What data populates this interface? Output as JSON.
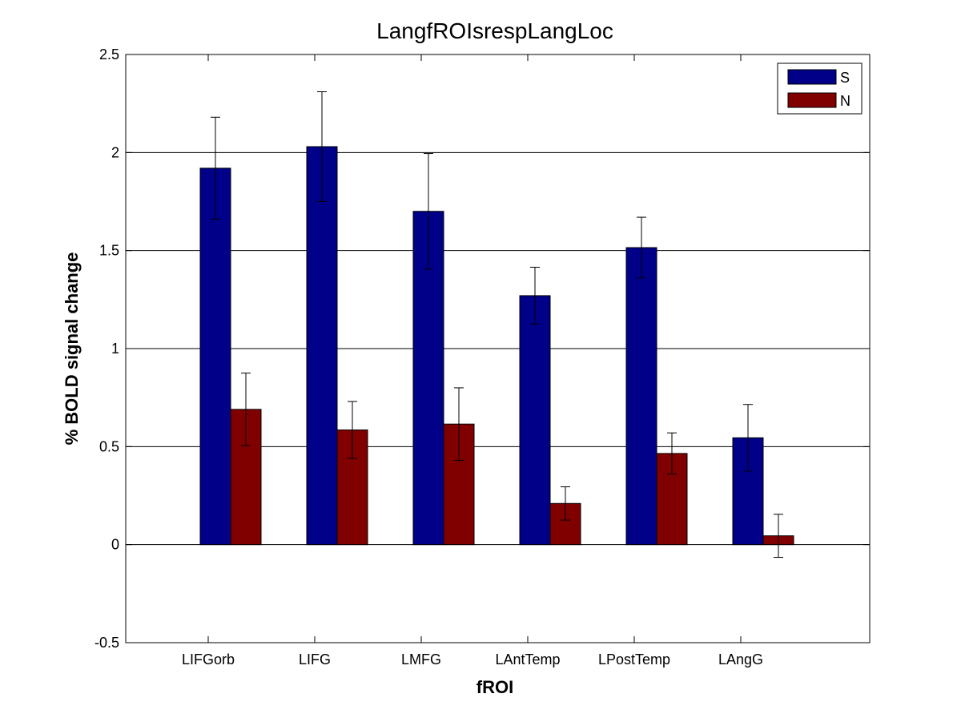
{
  "chart_data": {
    "type": "bar",
    "title": "LangfROIsrespLangLoc",
    "xlabel": "fROI",
    "ylabel": "% BOLD signal change",
    "categories": [
      "LIFGorb",
      "LIFG",
      "LMFG",
      "LAntTemp",
      "LPostTemp",
      "LAngG"
    ],
    "ylim": [
      -0.5,
      2.5
    ],
    "yticks": [
      -0.5,
      0,
      0.5,
      1,
      1.5,
      2,
      2.5
    ],
    "ytick_labels": [
      "-0.5",
      "0",
      "0.5",
      "1",
      "1.5",
      "2",
      "2.5"
    ],
    "grid": "horizontal",
    "legend_position": "top-right",
    "series": [
      {
        "name": "S",
        "color": "#000088",
        "values": [
          1.92,
          2.03,
          1.7,
          1.27,
          1.515,
          0.545
        ],
        "errors": [
          0.26,
          0.28,
          0.295,
          0.145,
          0.155,
          0.17
        ]
      },
      {
        "name": "N",
        "color": "#800000",
        "values": [
          0.69,
          0.585,
          0.615,
          0.21,
          0.465,
          0.045
        ],
        "errors": [
          0.185,
          0.145,
          0.185,
          0.085,
          0.105,
          0.11
        ]
      }
    ]
  }
}
